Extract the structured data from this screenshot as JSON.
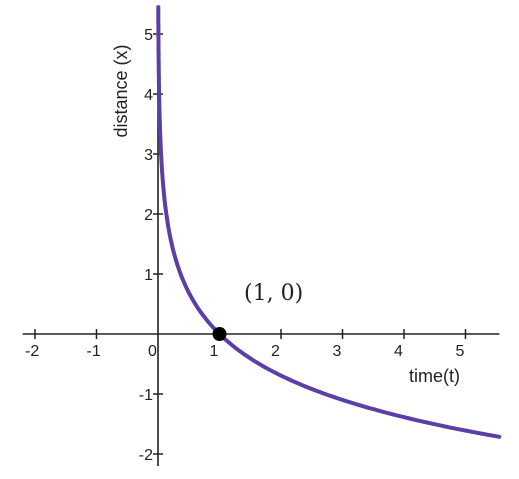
{
  "chart_data": {
    "type": "line",
    "title": "",
    "xlabel": "time(t)",
    "ylabel": "distance (x)",
    "xlim": [
      -2.2,
      5.55
    ],
    "ylim": [
      -2.2,
      5.45
    ],
    "grid": false,
    "x_ticks": [
      "-2",
      "-1",
      "0",
      "1",
      "2",
      "3",
      "4",
      "5"
    ],
    "y_ticks": [
      "-2",
      "-1",
      "1",
      "2",
      "3",
      "4",
      "5"
    ],
    "series": [
      {
        "function": "-ln(t)",
        "color": "#5b3fa6",
        "x": [
          0.004,
          0.01,
          0.02,
          0.05,
          0.1,
          0.2,
          0.3,
          0.5,
          0.75,
          1.0,
          1.5,
          2.0,
          2.5,
          3.0,
          3.5,
          4.0,
          4.5,
          5.0,
          5.55
        ],
        "y": [
          5.45,
          4.61,
          3.91,
          3.0,
          2.3,
          1.61,
          1.2,
          0.69,
          0.29,
          0.0,
          -0.41,
          -0.69,
          -0.92,
          -1.1,
          -1.25,
          -1.39,
          -1.5,
          -1.61,
          -1.71
        ]
      }
    ],
    "annotations": [
      {
        "text": "(1, 0)",
        "x": 1,
        "y": 0,
        "color": "#000000"
      }
    ]
  }
}
